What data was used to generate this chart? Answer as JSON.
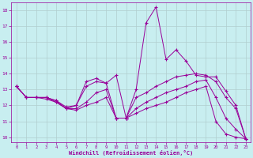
{
  "xlabel": "Windchill (Refroidissement éolien,°C)",
  "bg_color": "#c8eef0",
  "line_color": "#990099",
  "grid_color": "#aadddd",
  "xlim": [
    -0.5,
    23.5
  ],
  "ylim": [
    9.7,
    18.5
  ],
  "yticks": [
    10,
    11,
    12,
    13,
    14,
    15,
    16,
    17,
    18
  ],
  "xticks": [
    0,
    1,
    2,
    3,
    4,
    5,
    6,
    7,
    8,
    9,
    10,
    11,
    12,
    13,
    14,
    15,
    16,
    17,
    18,
    19,
    20,
    21,
    22,
    23
  ],
  "lines": [
    {
      "x": [
        0,
        1,
        2,
        3,
        4,
        5,
        6,
        7,
        8,
        9,
        10,
        11,
        12,
        13,
        14,
        15,
        16,
        17,
        18,
        19,
        20,
        21,
        22,
        23
      ],
      "y": [
        13.2,
        12.5,
        12.5,
        12.5,
        12.3,
        11.8,
        12.0,
        13.5,
        13.7,
        13.4,
        13.9,
        11.2,
        13.0,
        17.2,
        18.2,
        14.9,
        15.5,
        14.8,
        13.9,
        13.8,
        13.8,
        12.9,
        12.0,
        9.9
      ]
    },
    {
      "x": [
        0,
        1,
        2,
        3,
        4,
        5,
        6,
        7,
        8,
        9,
        10,
        11,
        12,
        13,
        14,
        15,
        16,
        17,
        18,
        19,
        20,
        21,
        22,
        23
      ],
      "y": [
        13.2,
        12.5,
        12.5,
        12.5,
        12.3,
        11.9,
        12.0,
        13.2,
        13.5,
        13.4,
        11.2,
        11.2,
        12.5,
        12.8,
        13.2,
        13.5,
        13.8,
        13.9,
        14.0,
        13.9,
        13.5,
        12.5,
        11.8,
        9.9
      ]
    },
    {
      "x": [
        0,
        1,
        2,
        3,
        4,
        5,
        6,
        7,
        8,
        9,
        10,
        11,
        12,
        13,
        14,
        15,
        16,
        17,
        18,
        19,
        20,
        21,
        22,
        23
      ],
      "y": [
        13.2,
        12.5,
        12.5,
        12.5,
        12.2,
        11.8,
        11.8,
        12.2,
        12.8,
        13.0,
        11.2,
        11.2,
        11.8,
        12.2,
        12.5,
        12.8,
        13.0,
        13.2,
        13.5,
        13.6,
        12.5,
        11.2,
        10.5,
        9.9
      ]
    },
    {
      "x": [
        0,
        1,
        2,
        3,
        4,
        5,
        6,
        7,
        8,
        9,
        10,
        11,
        12,
        13,
        14,
        15,
        16,
        17,
        18,
        19,
        20,
        21,
        22,
        23
      ],
      "y": [
        13.2,
        12.5,
        12.5,
        12.4,
        12.2,
        11.8,
        11.7,
        12.0,
        12.2,
        12.5,
        11.2,
        11.2,
        11.5,
        11.8,
        12.0,
        12.2,
        12.5,
        12.8,
        13.0,
        13.2,
        11.0,
        10.2,
        10.0,
        9.9
      ]
    }
  ]
}
